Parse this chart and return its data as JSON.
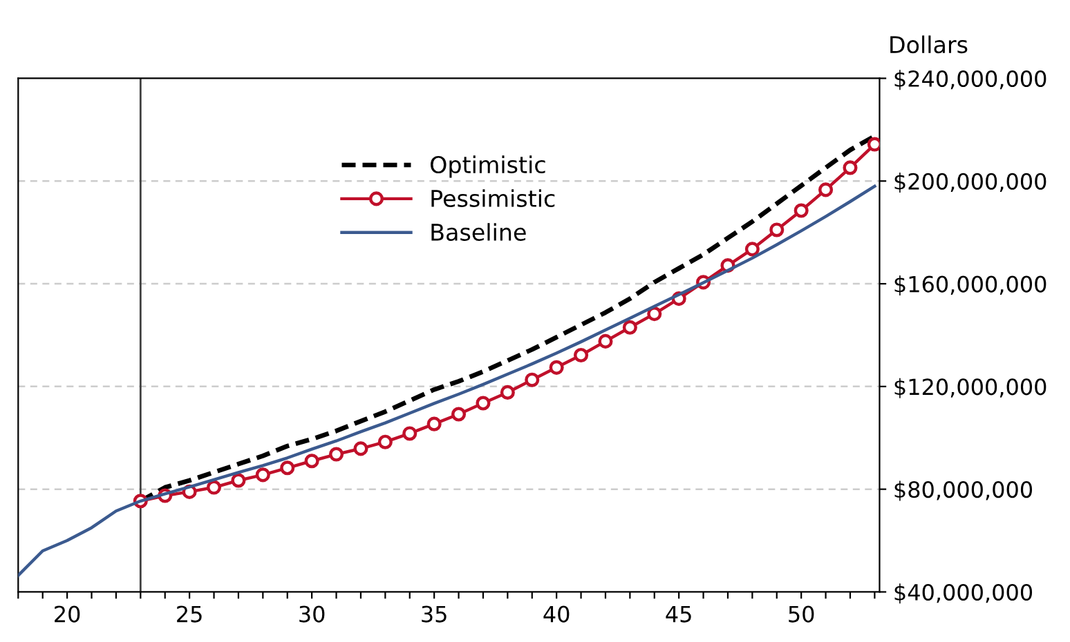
{
  "chart_data": {
    "type": "line",
    "ylabel": "Dollars",
    "xlim": [
      18,
      53.2
    ],
    "ylim": [
      40000000,
      240000000
    ],
    "xticks": [
      {
        "value": 18,
        "label": null
      },
      {
        "value": 19,
        "label": null
      },
      20,
      {
        "value": 21,
        "label": null
      },
      {
        "value": 22,
        "label": null
      },
      {
        "value": 23,
        "label": null
      },
      {
        "value": 24,
        "label": null
      },
      25,
      {
        "value": 26,
        "label": null
      },
      {
        "value": 27,
        "label": null
      },
      {
        "value": 28,
        "label": null
      },
      {
        "value": 29,
        "label": null
      },
      30,
      {
        "value": 31,
        "label": null
      },
      {
        "value": 32,
        "label": null
      },
      {
        "value": 33,
        "label": null
      },
      {
        "value": 34,
        "label": null
      },
      35,
      {
        "value": 36,
        "label": null
      },
      {
        "value": 37,
        "label": null
      },
      {
        "value": 38,
        "label": null
      },
      {
        "value": 39,
        "label": null
      },
      40,
      {
        "value": 41,
        "label": null
      },
      {
        "value": 42,
        "label": null
      },
      {
        "value": 43,
        "label": null
      },
      {
        "value": 44,
        "label": null
      },
      45,
      {
        "value": 46,
        "label": null
      },
      {
        "value": 47,
        "label": null
      },
      {
        "value": 48,
        "label": null
      },
      {
        "value": 49,
        "label": null
      },
      50,
      {
        "value": 51,
        "label": null
      },
      {
        "value": 52,
        "label": null
      },
      {
        "value": 53,
        "label": null
      }
    ],
    "yticks": [
      {
        "value": 40000000,
        "label": "$40,000,000"
      },
      {
        "value": 80000000,
        "label": "$80,000,000"
      },
      {
        "value": 120000000,
        "label": "$120,000,000"
      },
      {
        "value": 160000000,
        "label": "$160,000,000"
      },
      {
        "value": 200000000,
        "label": "$200,000,000"
      },
      {
        "value": 240000000,
        "label": "$240,000,000"
      }
    ],
    "grid": "y",
    "legend": "top",
    "ref_lines": [
      {
        "axis": "x",
        "value": 23,
        "color": "#404040"
      }
    ],
    "series": [
      {
        "name": "Optimistic",
        "color": "#000000",
        "line_style": "dashed",
        "marker": "none",
        "x": [
          23,
          24,
          25,
          26,
          27,
          28,
          29,
          30,
          31,
          32,
          33,
          34,
          35,
          36,
          37,
          38,
          39,
          40,
          41,
          42,
          43,
          44,
          45,
          46,
          47,
          48,
          49,
          50,
          51,
          52,
          53
        ],
        "values": [
          75400000,
          80700000,
          83400000,
          86600000,
          89800000,
          93000000,
          96800000,
          99500000,
          102700000,
          106500000,
          110200000,
          114500000,
          118800000,
          122000000,
          125800000,
          130100000,
          134400000,
          139200000,
          144000000,
          148800000,
          154200000,
          160600000,
          166000000,
          171400000,
          177800000,
          184200000,
          191200000,
          198200000,
          205200000,
          212100000,
          217500000
        ]
      },
      {
        "name": "Pessimistic",
        "color": "#c0102a",
        "line_style": "solid",
        "marker": "circle",
        "x": [
          23,
          24,
          25,
          26,
          27,
          28,
          29,
          30,
          31,
          32,
          33,
          34,
          35,
          36,
          37,
          38,
          39,
          40,
          41,
          42,
          43,
          44,
          45,
          46,
          47,
          48,
          49,
          50,
          51,
          52,
          53
        ],
        "values": [
          75400000,
          77500000,
          79000000,
          80700000,
          83400000,
          85600000,
          88300000,
          91000000,
          93600000,
          95800000,
          98400000,
          101700000,
          105400000,
          109200000,
          113500000,
          117700000,
          122600000,
          127400000,
          132200000,
          137600000,
          143000000,
          148300000,
          154200000,
          160600000,
          167100000,
          173500000,
          181000000,
          188500000,
          196600000,
          205200000,
          214300000
        ]
      },
      {
        "name": "Baseline",
        "color": "#3b5a8f",
        "line_style": "solid",
        "marker": "none",
        "x": [
          18,
          19,
          20,
          21,
          22,
          23,
          24,
          25,
          26,
          27,
          28,
          29,
          30,
          31,
          32,
          33,
          34,
          35,
          36,
          37,
          38,
          39,
          40,
          41,
          42,
          43,
          44,
          45,
          46,
          47,
          48,
          49,
          50,
          51,
          52,
          53
        ],
        "values": [
          46400000,
          56000000,
          60000000,
          65000000,
          71500000,
          75400000,
          78200000,
          80900000,
          83700000,
          86500000,
          89200000,
          92200000,
          95600000,
          98800000,
          102400000,
          105800000,
          109600000,
          113400000,
          117000000,
          120800000,
          124800000,
          128800000,
          133000000,
          137400000,
          142000000,
          146600000,
          151200000,
          155800000,
          160400000,
          165200000,
          170000000,
          175200000,
          180600000,
          186200000,
          192000000,
          198000000
        ]
      }
    ]
  }
}
